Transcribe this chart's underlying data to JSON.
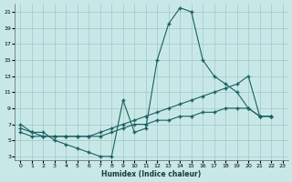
{
  "xlabel": "Humidex (Indice chaleur)",
  "bg_color": "#c8e8e8",
  "grid_color": "#a0c8c8",
  "line_color": "#1a6060",
  "xlim": [
    -0.5,
    23.5
  ],
  "ylim": [
    2.5,
    22
  ],
  "xticks": [
    0,
    1,
    2,
    3,
    4,
    5,
    6,
    7,
    8,
    9,
    10,
    11,
    12,
    13,
    14,
    15,
    16,
    17,
    18,
    19,
    20,
    21,
    22,
    23
  ],
  "yticks": [
    3,
    5,
    7,
    9,
    11,
    13,
    15,
    17,
    19,
    21
  ],
  "line1_x": [
    0,
    1,
    2,
    3,
    4,
    5,
    6,
    7,
    8,
    9,
    10,
    11,
    12,
    13,
    14,
    15,
    16,
    17,
    18,
    19,
    20,
    21,
    22
  ],
  "line1_y": [
    7,
    6,
    6,
    5,
    4.5,
    4,
    3.5,
    3,
    3,
    10,
    6,
    6.5,
    15,
    19.5,
    21.5,
    21,
    15,
    13,
    12,
    11,
    9,
    8,
    8
  ],
  "line2_x": [
    0,
    1,
    2,
    3,
    4,
    5,
    6,
    7,
    8,
    9,
    10,
    11,
    12,
    13,
    14,
    15,
    16,
    17,
    18,
    19,
    20,
    21,
    22
  ],
  "line2_y": [
    6.5,
    6,
    5.5,
    5.5,
    5.5,
    5.5,
    5.5,
    6,
    6.5,
    7,
    7.5,
    8,
    8.5,
    9,
    9.5,
    10,
    10.5,
    11,
    11.5,
    12,
    13,
    8,
    8
  ],
  "line3_x": [
    0,
    1,
    2,
    3,
    4,
    5,
    6,
    7,
    8,
    9,
    10,
    11,
    12,
    13,
    14,
    15,
    16,
    17,
    18,
    19,
    20,
    21,
    22
  ],
  "line3_y": [
    6,
    5.5,
    5.5,
    5.5,
    5.5,
    5.5,
    5.5,
    5.5,
    6,
    6.5,
    7,
    7,
    7.5,
    7.5,
    8,
    8,
    8.5,
    8.5,
    9,
    9,
    9,
    8,
    8
  ]
}
